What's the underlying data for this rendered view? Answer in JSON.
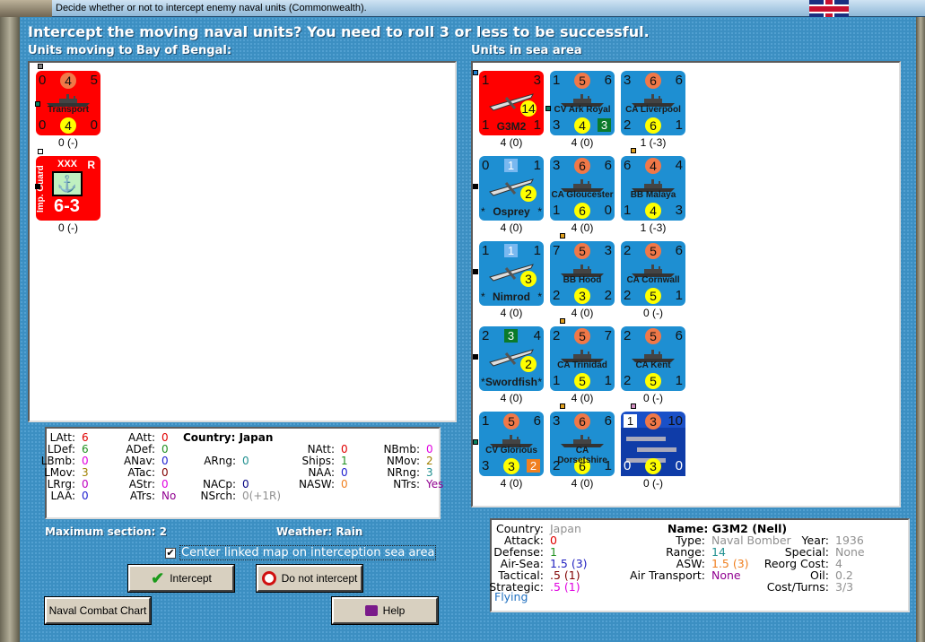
{
  "window": {
    "title": "Decide whether or not to intercept enemy naval units (Commonwealth)."
  },
  "header": {
    "question": "Intercept the moving naval units?  You need to roll 3 or less to be successful.",
    "left_label": "Units moving to Bay of Bengal:",
    "right_label": "Units in sea area"
  },
  "colors": {
    "red_counter": "#ff0000",
    "blue_counter": "#1e8fd2",
    "dark_blue_counter": "#1a50c8",
    "orange_circle": "#f07848",
    "yellow_circle": "#ffff00"
  },
  "moving_units": [
    {
      "type": "naval",
      "color": "red",
      "tl": "0",
      "tc": "4",
      "tr": "5",
      "bl": "0",
      "bc": "4",
      "br": "0",
      "name": "Transport",
      "caption": "0 (-)",
      "dot": "#808080"
    },
    {
      "type": "land",
      "color": "red",
      "side": "Imp. Guard",
      "size": "XXX",
      "corner": "R",
      "strength": "6-3",
      "caption": "0 (-)",
      "icon": "anchor-icon"
    }
  ],
  "sea_units": [
    {
      "type": "air",
      "color": "red",
      "tl": "1",
      "tr": "3",
      "bl": "1",
      "br": "1",
      "bc": "14",
      "name": "G3M2",
      "caption": "4 (0)"
    },
    {
      "type": "naval",
      "color": "blue",
      "tl": "1",
      "tc": "5",
      "tr": "6",
      "bl": "3",
      "bc": "4",
      "br": "3",
      "br_box": "#0a7a2a",
      "name": "CV Ark Royal",
      "caption": "4 (0)"
    },
    {
      "type": "naval",
      "color": "blue",
      "tl": "3",
      "tc": "6",
      "tr": "6",
      "bl": "2",
      "bc": "6",
      "br": "1",
      "name": "CA Liverpool",
      "caption": "1 (-3)"
    },
    {
      "type": "air",
      "color": "blue",
      "tl": "0",
      "tsq": "1",
      "tsq_color": "#79b8f0",
      "tr": "1",
      "bc": "2",
      "name": "Osprey",
      "stars": true,
      "caption": "4 (0)"
    },
    {
      "type": "naval",
      "color": "blue",
      "tl": "3",
      "tc": "6",
      "tr": "6",
      "bl": "1",
      "bc": "6",
      "br": "0",
      "name": "CA Gloucester",
      "caption": "4 (0)"
    },
    {
      "type": "naval",
      "color": "blue",
      "tl": "6",
      "tc": "4",
      "tr": "4",
      "bl": "1",
      "bc": "4",
      "br": "3",
      "name": "BB Malaya",
      "caption": "1 (-3)"
    },
    {
      "type": "air",
      "color": "blue",
      "tl": "1",
      "tsq": "1",
      "tsq_color": "#79b8f0",
      "tr": "1",
      "bc": "3",
      "name": "Nimrod",
      "stars": true,
      "caption": "4 (0)"
    },
    {
      "type": "naval",
      "color": "blue",
      "tl": "7",
      "tc": "5",
      "tr": "3",
      "bl": "2",
      "bc": "3",
      "br": "2",
      "name": "BB Hood",
      "caption": "4 (0)"
    },
    {
      "type": "naval",
      "color": "blue",
      "tl": "2",
      "tc": "5",
      "tr": "6",
      "bl": "2",
      "bc": "5",
      "br": "1",
      "name": "CA Cornwall",
      "caption": "0 (-)"
    },
    {
      "type": "air",
      "color": "blue",
      "tl": "2",
      "tsq": "3",
      "tsq_color": "#0a7a2a",
      "tr": "4",
      "bc": "2",
      "name": "Swordfish",
      "stars": true,
      "caption": "4 (0)"
    },
    {
      "type": "naval",
      "color": "blue",
      "tl": "2",
      "tc": "5",
      "tr": "7",
      "bl": "1",
      "bc": "5",
      "br": "1",
      "name": "CA Trinidad",
      "caption": "4 (0)"
    },
    {
      "type": "naval",
      "color": "blue",
      "tl": "2",
      "tc": "5",
      "tr": "6",
      "bl": "2",
      "bc": "5",
      "br": "1",
      "name": "CA Kent",
      "caption": "0 (-)"
    },
    {
      "type": "naval",
      "color": "blue",
      "tl": "1",
      "tc": "5",
      "tr": "6",
      "bl": "3",
      "bc": "3",
      "br": "2",
      "br_box": "#f08020",
      "name": "CV Glorious",
      "caption": "4 (0)"
    },
    {
      "type": "naval",
      "color": "blue",
      "tl": "3",
      "tc": "6",
      "tr": "6",
      "bl": "2",
      "bc": "6",
      "br": "1",
      "name": "CA Dorsetshire",
      "caption": "4 (0)"
    },
    {
      "type": "convoy",
      "color": "darkblue",
      "tsq": "1",
      "tsq_color": "#ffffff",
      "tc": "3",
      "tr": "10",
      "bl": "0",
      "bc": "3",
      "br": "0",
      "name": "",
      "caption": "0 (-)"
    }
  ],
  "stats": [
    [
      "LAtt:",
      "6",
      "#e00000"
    ],
    [
      "LDef:",
      "6",
      "#209020"
    ],
    [
      "LBmb:",
      "0",
      "#e000e0"
    ],
    [
      "LMov:",
      "3",
      "#a08000"
    ],
    [
      "LRrg:",
      "0",
      "#c000c0"
    ],
    [
      "LAA:",
      "0",
      "#2020d0"
    ],
    [
      "AAtt:",
      "0",
      "#e00000"
    ],
    [
      "ADef:",
      "0",
      "#209020"
    ],
    [
      "ANav:",
      "0",
      "#2020d0"
    ],
    [
      "ATac:",
      "0",
      "#800000"
    ],
    [
      "AStr:",
      "0",
      "#e000e0"
    ],
    [
      "ATrs:",
      "No",
      "#900090"
    ],
    [
      "ARng:",
      "0",
      "#209090"
    ],
    [
      "NACp:",
      "0",
      "#000080"
    ],
    [
      "NSrch:",
      "0(+1R)",
      "#909090"
    ],
    [
      "NAtt:",
      "0",
      "#e00000"
    ],
    [
      "Ships:",
      "1",
      "#209020"
    ],
    [
      "NAA:",
      "0",
      "#2020d0"
    ],
    [
      "NASW:",
      "0",
      "#f08020"
    ],
    [
      "NBmb:",
      "0",
      "#e000e0"
    ],
    [
      "NMov:",
      "2",
      "#a08000"
    ],
    [
      "NRng:",
      "3",
      "#209090"
    ],
    [
      "NTrs:",
      "Yes",
      "#900090"
    ]
  ],
  "stats_country": "Country: Japan",
  "max_section": "Maximum section: 2",
  "weather": "Weather:  Rain",
  "center_checkbox": {
    "label": "Center linked map on interception sea area",
    "checked": true
  },
  "buttons": {
    "intercept": "Intercept",
    "no_intercept": "Do not intercept",
    "chart": "Naval Combat Chart",
    "help": "Help"
  },
  "info": {
    "left": [
      [
        "Country:",
        "Japan",
        "#909090"
      ],
      [
        "Attack:",
        "0",
        "#e00000"
      ],
      [
        "Defense:",
        "1",
        "#209020"
      ],
      [
        "Air-Sea:",
        "1.5 (3)",
        "#2020c0"
      ],
      [
        "Tactical:",
        ".5 (1)",
        "#800000"
      ],
      [
        "Strategic:",
        ".5 (1)",
        "#e000e0"
      ]
    ],
    "flying": "Flying",
    "name": "Name: G3M2 (Nell)",
    "mid": [
      [
        "Type:",
        "Naval Bomber",
        "#909090"
      ],
      [
        "Range:",
        "14",
        "#209090"
      ],
      [
        "ASW:",
        "1.5 (3)",
        "#f08020"
      ],
      [
        "Air Transport:",
        "None",
        "#900090"
      ]
    ],
    "right": [
      [
        "Year:",
        "1936",
        "#909090"
      ],
      [
        "Special:",
        "None",
        "#909090"
      ],
      [
        "Reorg Cost:",
        "4",
        "#909090"
      ],
      [
        "Oil:",
        "0.2",
        "#909090"
      ],
      [
        "Cost/Turns:",
        "3/3",
        "#909090"
      ]
    ]
  }
}
